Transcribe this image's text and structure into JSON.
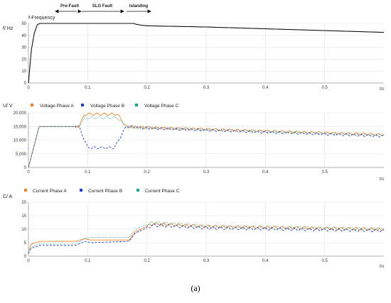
{
  "caption": "(a)",
  "annotations": [
    "Pre-Fault",
    "SLG Fault",
    "Islanding"
  ],
  "chart_data": [
    {
      "type": "line",
      "title": "f-Frequency",
      "ylabel": "f/ Hz",
      "xlabel": "t/s",
      "xlim": [
        0,
        0.6
      ],
      "ylim": [
        0,
        50
      ],
      "x_ticks": [
        "0",
        "0.1",
        "0.2",
        "0.3",
        "0.4",
        "0.5"
      ],
      "y_ticks": [
        "0",
        "10",
        "20",
        "30",
        "40",
        "50"
      ],
      "grid": true,
      "series": [
        {
          "color": "#111111",
          "x": [
            0,
            0.005,
            0.01,
            0.015,
            0.02,
            0.05,
            0.1,
            0.15,
            0.165,
            0.175,
            0.18,
            0.19,
            0.2,
            0.3,
            0.4,
            0.5,
            0.6
          ],
          "y": [
            0,
            28,
            42,
            49,
            50,
            50,
            50,
            50,
            50.5,
            50.5,
            49.5,
            48.5,
            48,
            47,
            45.5,
            44,
            42.5
          ]
        }
      ]
    },
    {
      "type": "line",
      "ylabel": "U/ V",
      "xlabel": "t/s",
      "xlim": [
        0,
        0.6
      ],
      "ylim": [
        0,
        20000
      ],
      "x_ticks": [
        "0",
        "0.1",
        "0.2",
        "0.3",
        "0.4",
        "0.5"
      ],
      "y_ticks": [
        "0",
        "5,000",
        "10,000",
        "15,000",
        "20,000"
      ],
      "grid": true,
      "legend": "top",
      "series": [
        {
          "name": "Voltage Phase A",
          "color": "#f5821f",
          "dash": "solid",
          "x": [
            0,
            0.018,
            0.085,
            0.095,
            0.15,
            0.165,
            0.2,
            0.6
          ],
          "y": [
            0,
            15000,
            15000,
            19500,
            19500,
            15000,
            14600,
            12000
          ],
          "osc": [
            0.08,
            0.6,
            380
          ]
        },
        {
          "name": "Voltage Phase B",
          "color": "#1f3fd6",
          "dash": "dashed",
          "x": [
            0,
            0.018,
            0.085,
            0.1,
            0.145,
            0.165,
            0.2,
            0.6
          ],
          "y": [
            0,
            15000,
            15000,
            7200,
            7200,
            15000,
            14400,
            11500
          ],
          "osc": [
            0.08,
            0.6,
            380
          ]
        },
        {
          "name": "Voltage Phase C",
          "color": "#1aa88a",
          "dash": "dotted",
          "x": [
            0,
            0.018,
            0.085,
            0.095,
            0.15,
            0.165,
            0.2,
            0.6
          ],
          "y": [
            0,
            15000,
            15000,
            18200,
            18200,
            15000,
            14500,
            11800
          ],
          "osc": [
            0.08,
            0.6,
            380
          ]
        }
      ]
    },
    {
      "type": "line",
      "ylabel": "C/ A",
      "xlabel": "t/s",
      "xlim": [
        0,
        0.6
      ],
      "ylim": [
        0,
        20
      ],
      "x_ticks": [
        "0",
        "0.1",
        "0.2",
        "0.3",
        "0.4",
        "0.5"
      ],
      "y_ticks": [
        "0",
        "5",
        "10",
        "15",
        "20"
      ],
      "grid": true,
      "legend": "top",
      "series": [
        {
          "name": "Current Phase A",
          "color": "#f5821f",
          "dash": "solid",
          "x": [
            0,
            0.005,
            0.02,
            0.08,
            0.095,
            0.105,
            0.17,
            0.18,
            0.21,
            0.3,
            0.6
          ],
          "y": [
            2,
            4.5,
            5.5,
            5.5,
            6.5,
            6,
            6,
            9,
            12,
            11,
            10
          ],
          "osc": [
            0.2,
            0.6,
            0.5
          ]
        },
        {
          "name": "Current Phase B",
          "color": "#1f3fd6",
          "dash": "dashed",
          "x": [
            0,
            0.005,
            0.02,
            0.08,
            0.095,
            0.105,
            0.17,
            0.18,
            0.21,
            0.3,
            0.6
          ],
          "y": [
            1,
            3,
            4,
            4,
            5.5,
            5,
            5.5,
            8.5,
            11.5,
            10.5,
            9.5
          ],
          "osc": [
            0.2,
            0.6,
            0.5
          ]
        },
        {
          "name": "Current Phase C",
          "color": "#1aa88a",
          "dash": "dotted",
          "x": [
            0,
            0.005,
            0.02,
            0.08,
            0.095,
            0.105,
            0.17,
            0.18,
            0.21,
            0.3,
            0.6
          ],
          "y": [
            1.5,
            3.5,
            4.5,
            4.5,
            6.5,
            7,
            7,
            10,
            12.5,
            11,
            10
          ],
          "osc": [
            0.2,
            0.6,
            0.5
          ]
        }
      ]
    }
  ]
}
